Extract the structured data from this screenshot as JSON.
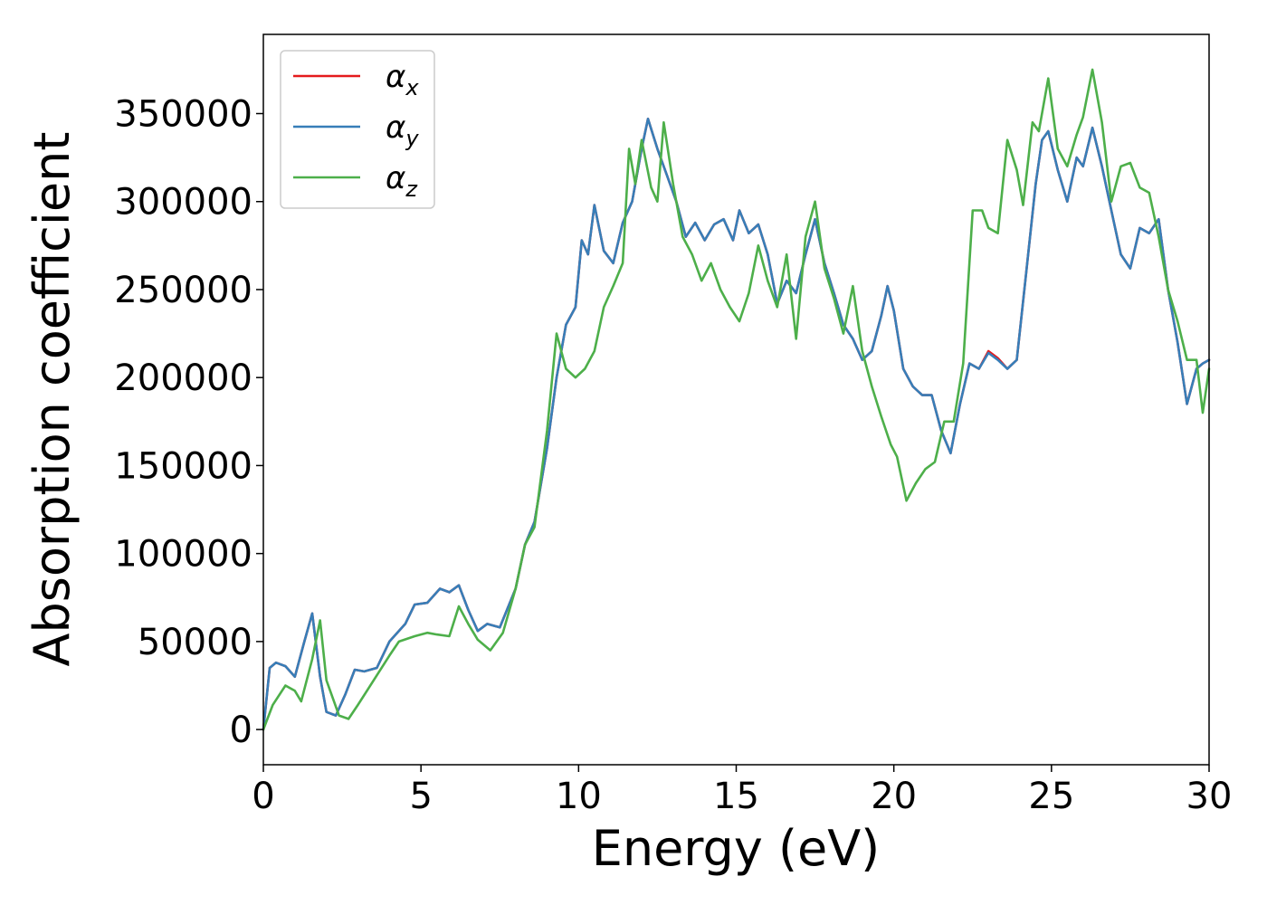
{
  "chart_data": {
    "type": "line",
    "title": "",
    "xlabel": "Energy (eV)",
    "ylabel": "Absorption coefficient",
    "xlim": [
      0,
      30
    ],
    "ylim": [
      -20000,
      395000
    ],
    "xticks": [
      0,
      5,
      10,
      15,
      20,
      25,
      30
    ],
    "yticks": [
      0,
      50000,
      100000,
      150000,
      200000,
      250000,
      300000,
      350000
    ],
    "grid": false,
    "legend_position": "top-left",
    "series": [
      {
        "name": "x",
        "legend_symbol": "α",
        "color": "#e41a1c",
        "x": [
          0,
          0.2,
          0.4,
          0.7,
          1.0,
          1.3,
          1.55,
          1.8,
          2.0,
          2.3,
          2.6,
          2.9,
          3.2,
          3.6,
          4.0,
          4.5,
          4.8,
          5.2,
          5.6,
          5.9,
          6.2,
          6.5,
          6.8,
          7.1,
          7.5,
          8.0,
          8.3,
          8.6,
          9.0,
          9.3,
          9.6,
          9.9,
          10.1,
          10.3,
          10.5,
          10.8,
          11.1,
          11.4,
          11.7,
          12.0,
          12.2,
          12.5,
          12.8,
          13.1,
          13.4,
          13.7,
          14.0,
          14.3,
          14.6,
          14.9,
          15.1,
          15.4,
          15.7,
          16.0,
          16.3,
          16.6,
          16.9,
          17.2,
          17.5,
          17.8,
          18.1,
          18.4,
          18.7,
          19.0,
          19.3,
          19.6,
          19.8,
          20.0,
          20.3,
          20.6,
          20.9,
          21.2,
          21.5,
          21.8,
          22.1,
          22.4,
          22.7,
          23.0,
          23.3,
          23.6,
          23.9,
          24.2,
          24.5,
          24.7,
          24.9,
          25.2,
          25.5,
          25.8,
          26.0,
          26.3,
          26.6,
          26.9,
          27.2,
          27.5,
          27.8,
          28.1,
          28.4,
          28.7,
          29.0,
          29.3,
          29.6,
          29.8,
          30.0
        ],
        "y": [
          0,
          35000,
          38000,
          36000,
          30000,
          50000,
          66000,
          30000,
          10000,
          8000,
          20000,
          34000,
          33000,
          35000,
          50000,
          60000,
          71000,
          72000,
          80000,
          78000,
          82000,
          68000,
          56000,
          60000,
          58000,
          80000,
          105000,
          118000,
          160000,
          200000,
          230000,
          240000,
          278000,
          270000,
          298000,
          272000,
          265000,
          288000,
          300000,
          330000,
          347000,
          330000,
          315000,
          300000,
          280000,
          288000,
          278000,
          287000,
          290000,
          278000,
          295000,
          282000,
          287000,
          270000,
          242000,
          255000,
          248000,
          270000,
          290000,
          265000,
          248000,
          230000,
          222000,
          210000,
          215000,
          235000,
          252000,
          238000,
          205000,
          195000,
          190000,
          190000,
          170000,
          157000,
          185000,
          208000,
          205000,
          215000,
          211000,
          205000,
          210000,
          260000,
          310000,
          335000,
          340000,
          318000,
          300000,
          325000,
          320000,
          342000,
          320000,
          295000,
          270000,
          262000,
          285000,
          282000,
          290000,
          250000,
          220000,
          185000,
          205000,
          208000,
          210000
        ]
      },
      {
        "name": "y",
        "legend_symbol": "α",
        "color": "#377eb8",
        "x": [
          0,
          0.2,
          0.4,
          0.7,
          1.0,
          1.3,
          1.55,
          1.8,
          2.0,
          2.3,
          2.6,
          2.9,
          3.2,
          3.6,
          4.0,
          4.5,
          4.8,
          5.2,
          5.6,
          5.9,
          6.2,
          6.5,
          6.8,
          7.1,
          7.5,
          8.0,
          8.3,
          8.6,
          9.0,
          9.3,
          9.6,
          9.9,
          10.1,
          10.3,
          10.5,
          10.8,
          11.1,
          11.4,
          11.7,
          12.0,
          12.2,
          12.5,
          12.8,
          13.1,
          13.4,
          13.7,
          14.0,
          14.3,
          14.6,
          14.9,
          15.1,
          15.4,
          15.7,
          16.0,
          16.3,
          16.6,
          16.9,
          17.2,
          17.5,
          17.8,
          18.1,
          18.4,
          18.7,
          19.0,
          19.3,
          19.6,
          19.8,
          20.0,
          20.3,
          20.6,
          20.9,
          21.2,
          21.5,
          21.8,
          22.1,
          22.4,
          22.7,
          23.0,
          23.3,
          23.6,
          23.9,
          24.2,
          24.5,
          24.7,
          24.9,
          25.2,
          25.5,
          25.8,
          26.0,
          26.3,
          26.6,
          26.9,
          27.2,
          27.5,
          27.8,
          28.1,
          28.4,
          28.7,
          29.0,
          29.3,
          29.6,
          29.8,
          30.0
        ],
        "y": [
          0,
          35000,
          38000,
          36000,
          30000,
          50000,
          66000,
          30000,
          10000,
          8000,
          20000,
          34000,
          33000,
          35000,
          50000,
          60000,
          71000,
          72000,
          80000,
          78000,
          82000,
          68000,
          56000,
          60000,
          58000,
          80000,
          105000,
          118000,
          160000,
          200000,
          230000,
          240000,
          278000,
          270000,
          298000,
          272000,
          265000,
          288000,
          300000,
          330000,
          347000,
          330000,
          315000,
          300000,
          280000,
          288000,
          278000,
          287000,
          290000,
          278000,
          295000,
          282000,
          287000,
          270000,
          242000,
          255000,
          248000,
          270000,
          290000,
          265000,
          248000,
          230000,
          222000,
          210000,
          215000,
          235000,
          252000,
          238000,
          205000,
          195000,
          190000,
          190000,
          170000,
          157000,
          185000,
          208000,
          205000,
          214000,
          210000,
          205000,
          210000,
          260000,
          310000,
          335000,
          340000,
          318000,
          300000,
          325000,
          320000,
          342000,
          320000,
          295000,
          270000,
          262000,
          285000,
          282000,
          290000,
          250000,
          220000,
          185000,
          205000,
          208000,
          210000
        ]
      },
      {
        "name": "z",
        "legend_symbol": "α",
        "color": "#4daf4a",
        "x": [
          0,
          0.3,
          0.7,
          1.0,
          1.2,
          1.55,
          1.8,
          2.0,
          2.4,
          2.7,
          3.0,
          3.5,
          4.0,
          4.3,
          4.8,
          5.2,
          5.5,
          5.9,
          6.2,
          6.5,
          6.8,
          7.2,
          7.6,
          8.0,
          8.3,
          8.6,
          9.0,
          9.3,
          9.6,
          9.9,
          10.2,
          10.5,
          10.8,
          11.1,
          11.4,
          11.6,
          11.8,
          12.0,
          12.3,
          12.5,
          12.7,
          13.0,
          13.3,
          13.6,
          13.9,
          14.2,
          14.5,
          14.8,
          15.1,
          15.4,
          15.7,
          16.0,
          16.3,
          16.6,
          16.9,
          17.2,
          17.5,
          17.8,
          18.1,
          18.4,
          18.7,
          19.0,
          19.3,
          19.6,
          19.9,
          20.1,
          20.4,
          20.7,
          21.0,
          21.3,
          21.6,
          21.9,
          22.2,
          22.5,
          22.8,
          23.0,
          23.3,
          23.6,
          23.9,
          24.1,
          24.4,
          24.6,
          24.9,
          25.2,
          25.5,
          25.8,
          26.0,
          26.3,
          26.6,
          26.9,
          27.2,
          27.5,
          27.8,
          28.1,
          28.4,
          28.7,
          29.0,
          29.3,
          29.6,
          29.8,
          30.0
        ],
        "y": [
          0,
          14000,
          25000,
          22000,
          16000,
          40000,
          62000,
          28000,
          8000,
          6000,
          14000,
          28000,
          42000,
          50000,
          53000,
          55000,
          54000,
          53000,
          70000,
          60000,
          51000,
          45000,
          55000,
          80000,
          105000,
          115000,
          170000,
          225000,
          205000,
          200000,
          205000,
          215000,
          240000,
          252000,
          265000,
          330000,
          310000,
          335000,
          308000,
          300000,
          345000,
          310000,
          280000,
          270000,
          255000,
          265000,
          250000,
          240000,
          232000,
          248000,
          275000,
          255000,
          240000,
          270000,
          222000,
          280000,
          300000,
          262000,
          245000,
          225000,
          252000,
          215000,
          195000,
          178000,
          162000,
          155000,
          130000,
          140000,
          148000,
          152000,
          175000,
          175000,
          208000,
          295000,
          295000,
          285000,
          282000,
          335000,
          318000,
          298000,
          345000,
          340000,
          370000,
          330000,
          320000,
          338000,
          348000,
          375000,
          345000,
          300000,
          320000,
          322000,
          308000,
          305000,
          280000,
          250000,
          232000,
          210000,
          210000,
          180000,
          205000
        ]
      }
    ]
  }
}
